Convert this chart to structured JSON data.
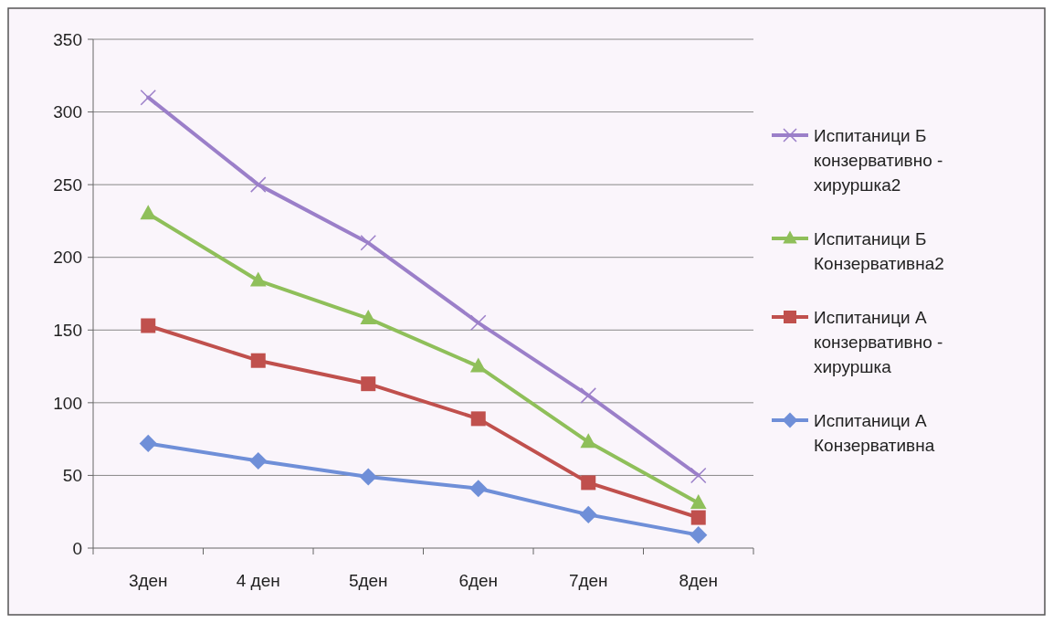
{
  "chart_data": {
    "type": "line",
    "categories": [
      "3ден",
      "4 ден",
      "5ден",
      "6ден",
      "7ден",
      "8ден"
    ],
    "series": [
      {
        "name": "Испитаници Б конзервативно - хируршка2",
        "color": "#9b7fc9",
        "marker": "cross",
        "values": [
          310,
          250,
          210,
          155,
          105,
          50
        ]
      },
      {
        "name": "Испитаници Б Конзервативна2",
        "color": "#8fbf5a",
        "marker": "triangle",
        "values": [
          230,
          184,
          158,
          125,
          73,
          31
        ]
      },
      {
        "name": "Испитаници А конзервативно - хируршка",
        "color": "#c0504d",
        "marker": "square",
        "values": [
          153,
          129,
          113,
          89,
          45,
          21
        ]
      },
      {
        "name": "Испитаници А Конзервативна",
        "color": "#6f8fd8",
        "marker": "diamond",
        "values": [
          72,
          60,
          49,
          41,
          23,
          9
        ]
      }
    ],
    "ylim": [
      0,
      350
    ],
    "yticks": [
      0,
      50,
      100,
      150,
      200,
      250,
      300,
      350
    ],
    "grid": "y",
    "legend": "right"
  }
}
